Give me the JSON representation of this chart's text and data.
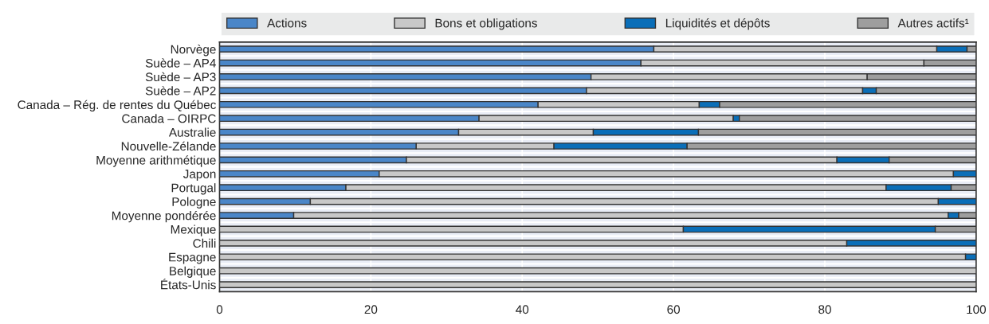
{
  "chart_data": {
    "type": "bar",
    "orientation": "horizontal",
    "stacked": true,
    "categories": [
      "Norvège",
      "Suède – AP4",
      "Suède – AP3",
      "Suède – AP2",
      "Canada – Rég. de rentes du Québec",
      "Canada – OIRPC",
      "Australie",
      "Nouvelle-Zélande",
      "Moyenne arithmétique",
      "Japon",
      "Portugal",
      "Pologne",
      "Moyenne pondérée",
      "Mexique",
      "Chili",
      "Espagne",
      "Belgique",
      "États-Unis"
    ],
    "series": [
      {
        "name": "Actions",
        "color": "#4a86c8",
        "values": [
          57.4,
          55.7,
          49.1,
          48.5,
          42.1,
          34.3,
          31.6,
          26.0,
          24.7,
          21.1,
          16.7,
          12.0,
          9.8,
          0,
          0,
          0,
          0,
          0
        ]
      },
      {
        "name": "Bons et obligations",
        "color": "#c8c8c8",
        "values": [
          37.4,
          37.4,
          36.5,
          36.5,
          21.3,
          33.6,
          17.8,
          18.2,
          56.9,
          75.9,
          71.4,
          83.0,
          86.5,
          61.3,
          82.9,
          98.6,
          100,
          100
        ]
      },
      {
        "name": "Liquidités et dépôts",
        "color": "#0a6eb8",
        "values": [
          4.0,
          0,
          0,
          1.8,
          2.7,
          0.8,
          13.9,
          17.6,
          6.9,
          3.0,
          8.6,
          5.0,
          1.4,
          33.3,
          17.1,
          1.4,
          0,
          0
        ]
      },
      {
        "name": "Autres actifs¹",
        "color": "#9e9e9e",
        "values": [
          1.2,
          6.9,
          14.4,
          13.2,
          33.9,
          31.3,
          36.7,
          38.2,
          11.5,
          0,
          3.3,
          0,
          2.3,
          5.4,
          0,
          0,
          0,
          0
        ]
      }
    ],
    "xlim": [
      0,
      100
    ],
    "xticks": [
      0,
      20,
      40,
      60,
      80,
      100
    ],
    "grid": "x",
    "legend": "top"
  }
}
